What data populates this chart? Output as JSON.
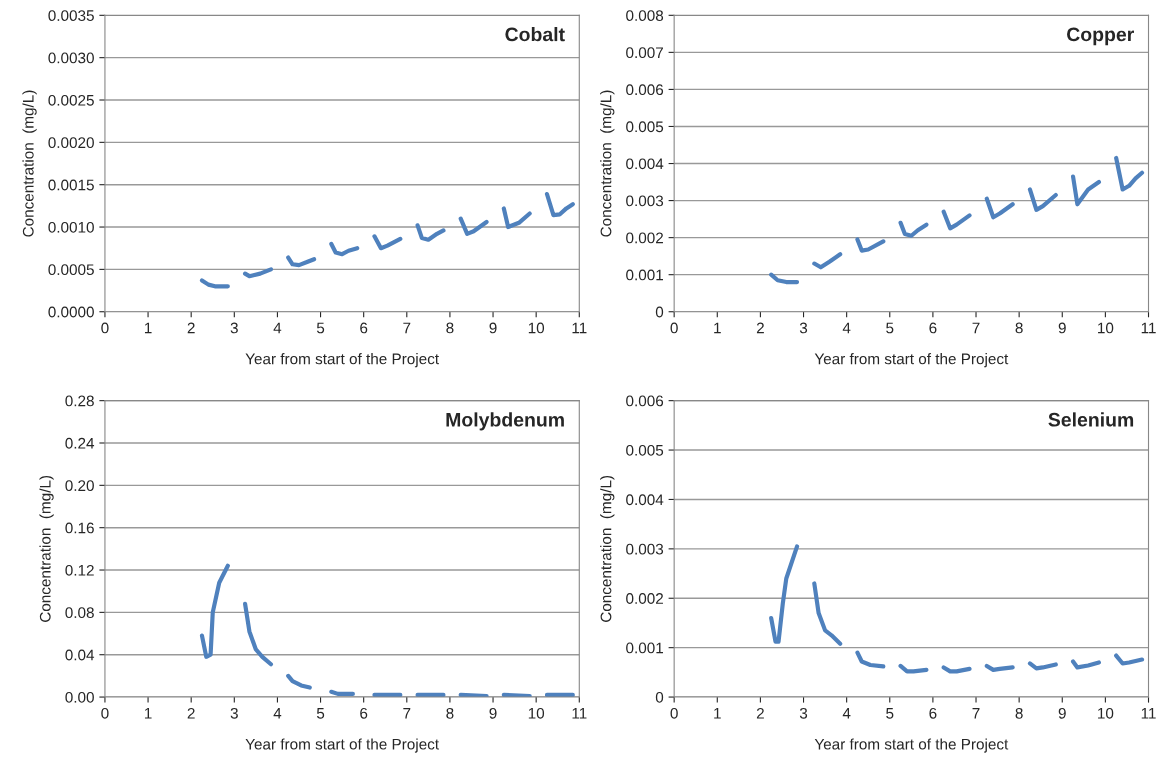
{
  "chart_data": [
    {
      "type": "line",
      "title": "Cobalt",
      "xlabel": "Year from start of the Project",
      "ylabel": "Concentration  (mg/L)",
      "grid": "y",
      "marker": "none",
      "line_style": "solid",
      "xlim": [
        0,
        11
      ],
      "xticks": [
        0,
        1,
        2,
        3,
        4,
        5,
        6,
        7,
        8,
        9,
        10,
        11
      ],
      "ylim": [
        0,
        0.0035
      ],
      "yticks": [
        {
          "value": 0,
          "label": "0.0000"
        },
        {
          "value": 0.0005,
          "label": "0.0005"
        },
        {
          "value": 0.001,
          "label": "0.0010"
        },
        {
          "value": 0.0015,
          "label": "0.0015"
        },
        {
          "value": 0.002,
          "label": "0.0020"
        },
        {
          "value": 0.0025,
          "label": "0.0025"
        },
        {
          "value": 0.003,
          "label": "0.0030"
        },
        {
          "value": 0.0035,
          "label": "0.0035"
        }
      ],
      "series": [
        {
          "color": "#4f81bd",
          "x": [
            2.25,
            2.4,
            2.55,
            2.85,
            3.05,
            3.25,
            3.35,
            3.6,
            3.85,
            4.05,
            4.25,
            4.35,
            4.5,
            4.7,
            4.85,
            5.05,
            5.25,
            5.35,
            5.5,
            5.65,
            5.85,
            6.05,
            6.25,
            6.4,
            6.55,
            6.85,
            7.05,
            7.25,
            7.35,
            7.5,
            7.7,
            7.85,
            8.05,
            8.25,
            8.4,
            8.55,
            8.85,
            9.05,
            9.25,
            9.35,
            9.6,
            9.85,
            10.05,
            10.25,
            10.4,
            10.55,
            10.7,
            10.85
          ],
          "values": [
            0.00037,
            0.00032,
            0.0003,
            0.0003,
            null,
            0.00045,
            0.00042,
            0.00045,
            0.0005,
            null,
            0.00064,
            0.00056,
            0.00055,
            0.00059,
            0.00062,
            null,
            0.0008,
            0.0007,
            0.00068,
            0.00072,
            0.00075,
            null,
            0.00089,
            0.00075,
            0.00078,
            0.00086,
            null,
            0.00102,
            0.00087,
            0.00085,
            0.00092,
            0.00096,
            null,
            0.0011,
            0.00092,
            0.00095,
            0.00106,
            null,
            0.00122,
            0.001,
            0.00105,
            0.00116,
            null,
            0.00139,
            0.00114,
            0.00115,
            0.00122,
            0.00127
          ]
        }
      ]
    },
    {
      "type": "line",
      "title": "Copper",
      "xlabel": "Year from start of the Project",
      "ylabel": "Concentration  (mg/L)",
      "grid": "y",
      "marker": "none",
      "line_style": "solid",
      "xlim": [
        0,
        11
      ],
      "xticks": [
        0,
        1,
        2,
        3,
        4,
        5,
        6,
        7,
        8,
        9,
        10,
        11
      ],
      "ylim": [
        0,
        0.008
      ],
      "yticks": [
        0,
        0.001,
        0.002,
        0.003,
        0.004,
        0.005,
        0.006,
        0.007,
        0.008
      ],
      "series": [
        {
          "color": "#4f81bd",
          "x": [
            2.25,
            2.4,
            2.6,
            2.85,
            3.05,
            3.25,
            3.4,
            3.6,
            3.85,
            4.05,
            4.25,
            4.35,
            4.5,
            4.85,
            5.05,
            5.25,
            5.35,
            5.5,
            5.65,
            5.85,
            6.05,
            6.25,
            6.4,
            6.55,
            6.85,
            7.05,
            7.25,
            7.4,
            7.55,
            7.85,
            8.05,
            8.25,
            8.4,
            8.55,
            8.85,
            9.05,
            9.25,
            9.35,
            9.6,
            9.85,
            10.05,
            10.25,
            10.4,
            10.55,
            10.7,
            10.85
          ],
          "values": [
            0.001,
            0.00085,
            0.0008,
            0.0008,
            null,
            0.0013,
            0.0012,
            0.00135,
            0.00155,
            null,
            0.00195,
            0.00165,
            0.00168,
            0.0019,
            null,
            0.0024,
            0.0021,
            0.00205,
            0.0022,
            0.00235,
            null,
            0.0027,
            0.00225,
            0.00235,
            0.0026,
            null,
            0.00305,
            0.00255,
            0.00265,
            0.0029,
            null,
            0.0033,
            0.00275,
            0.00285,
            0.00315,
            null,
            0.00365,
            0.0029,
            0.0033,
            0.0035,
            null,
            0.00415,
            0.0033,
            0.0034,
            0.0036,
            0.00375
          ]
        }
      ]
    },
    {
      "type": "line",
      "title": "Molybdenum",
      "xlabel": "Year from start of the Project",
      "ylabel": "Concentration  (mg/L)",
      "grid": "y",
      "marker": "none",
      "line_style": "solid",
      "xlim": [
        0,
        11
      ],
      "xticks": [
        0,
        1,
        2,
        3,
        4,
        5,
        6,
        7,
        8,
        9,
        10,
        11
      ],
      "ylim": [
        0,
        0.28
      ],
      "yticks": [
        {
          "value": 0,
          "label": "0.00"
        },
        {
          "value": 0.04,
          "label": "0.04"
        },
        {
          "value": 0.08,
          "label": "0.08"
        },
        {
          "value": 0.12,
          "label": "0.12"
        },
        {
          "value": 0.16,
          "label": "0.16"
        },
        {
          "value": 0.2,
          "label": "0.20"
        },
        {
          "value": 0.24,
          "label": "0.24"
        },
        {
          "value": 0.28,
          "label": "0.28"
        }
      ],
      "series": [
        {
          "color": "#4f81bd",
          "x": [
            2.25,
            2.35,
            2.45,
            2.5,
            2.65,
            2.85,
            3.05,
            3.25,
            3.35,
            3.5,
            3.65,
            3.85,
            4.05,
            4.25,
            4.35,
            4.55,
            4.75,
            5.05,
            5.25,
            5.4,
            5.75,
            6.05,
            6.25,
            6.85,
            7.05,
            7.25,
            7.85,
            8.05,
            8.25,
            8.85,
            9.05,
            9.25,
            9.85,
            10.05,
            10.25,
            10.85
          ],
          "values": [
            0.058,
            0.038,
            0.04,
            0.08,
            0.108,
            0.124,
            null,
            0.088,
            0.062,
            0.045,
            0.038,
            0.031,
            null,
            0.02,
            0.015,
            0.011,
            0.009,
            null,
            0.005,
            0.003,
            0.003,
            null,
            0.002,
            0.002,
            null,
            0.002,
            0.002,
            null,
            0.002,
            0.001,
            null,
            0.002,
            0.001,
            null,
            0.002,
            0.002
          ]
        }
      ]
    },
    {
      "type": "line",
      "title": "Selenium",
      "xlabel": "Year from start of the Project",
      "ylabel": "Concentration  (mg/L)",
      "grid": "y",
      "marker": "none",
      "line_style": "solid",
      "xlim": [
        0,
        11
      ],
      "xticks": [
        0,
        1,
        2,
        3,
        4,
        5,
        6,
        7,
        8,
        9,
        10,
        11
      ],
      "ylim": [
        0,
        0.006
      ],
      "yticks": [
        0,
        0.001,
        0.002,
        0.003,
        0.004,
        0.005,
        0.006
      ],
      "series": [
        {
          "color": "#4f81bd",
          "x": [
            2.25,
            2.35,
            2.42,
            2.52,
            2.6,
            2.85,
            3.05,
            3.25,
            3.35,
            3.5,
            3.65,
            3.85,
            4.05,
            4.25,
            4.35,
            4.55,
            4.85,
            5.05,
            5.25,
            5.4,
            5.55,
            5.85,
            6.05,
            6.25,
            6.4,
            6.55,
            6.85,
            7.05,
            7.25,
            7.4,
            7.55,
            7.85,
            8.05,
            8.25,
            8.4,
            8.55,
            8.85,
            9.05,
            9.25,
            9.35,
            9.6,
            9.85,
            10.05,
            10.25,
            10.4,
            10.55,
            10.85
          ],
          "values": [
            0.0016,
            0.00112,
            0.00112,
            0.0019,
            0.0024,
            0.00305,
            null,
            0.0023,
            0.0017,
            0.00135,
            0.00125,
            0.00108,
            null,
            0.0009,
            0.00072,
            0.00065,
            0.00062,
            null,
            0.00063,
            0.00052,
            0.00052,
            0.00055,
            null,
            0.0006,
            0.00052,
            0.00052,
            0.00057,
            null,
            0.00063,
            0.00055,
            0.00057,
            0.0006,
            null,
            0.00068,
            0.00058,
            0.0006,
            0.00066,
            null,
            0.00072,
            0.0006,
            0.00064,
            0.0007,
            null,
            0.00084,
            0.00068,
            0.0007,
            0.00076
          ]
        }
      ]
    }
  ]
}
